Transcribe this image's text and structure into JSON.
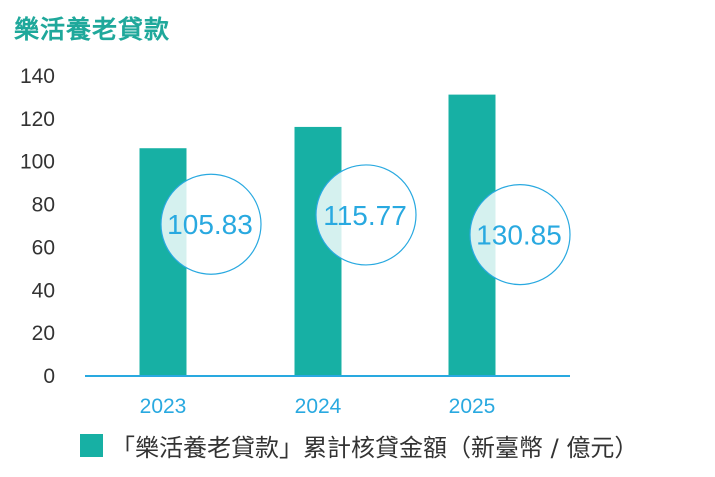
{
  "header": {
    "title": "樂活養老貸款"
  },
  "colors": {
    "bar": "#17b0a4",
    "axis": "#29a9e0",
    "label": "#29a9e0",
    "title": "#1fa89b",
    "tick_text": "#333333"
  },
  "chart_data": {
    "type": "bar",
    "title": "樂活養老貸款",
    "categories": [
      "2023",
      "2024",
      "2025"
    ],
    "series": [
      {
        "name": "「樂活養老貸款」累計核貸金額（新臺幣 / 億元）",
        "values": [
          105.83,
          115.77,
          130.85
        ]
      }
    ],
    "data_labels": [
      "105.83",
      "115.77",
      "130.85"
    ],
    "yticks": [
      "0",
      "20",
      "40",
      "60",
      "80",
      "100",
      "120",
      "140"
    ],
    "ylim": [
      0,
      140
    ],
    "xlabel": "",
    "ylabel": "",
    "grid": false,
    "legend_position": "bottom"
  }
}
